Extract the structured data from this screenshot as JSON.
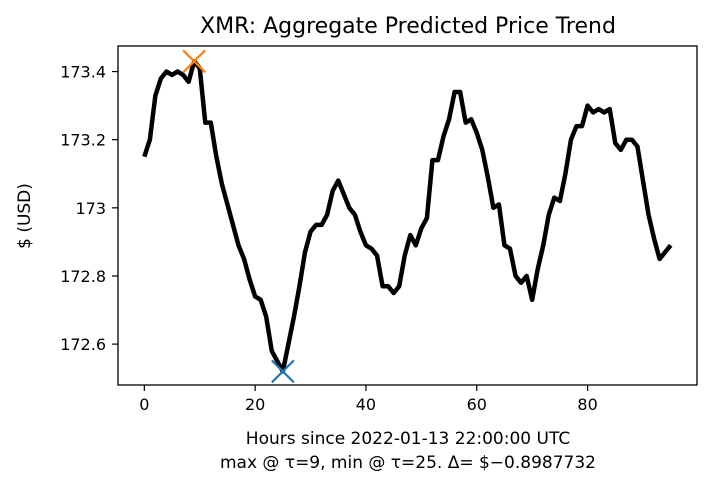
{
  "chart_data": {
    "type": "line",
    "title": "XMR: Aggregate Predicted Price Trend",
    "xlabel": "Hours since 2022-01-13 22:00:00 UTC",
    "xlabel2": "max @ τ=9, min @ τ=25. Δ= $−0.8987732",
    "ylabel": "$ (USD)",
    "xlim": [
      -4.75,
      99.75
    ],
    "ylim": [
      172.48,
      173.475
    ],
    "xticks": [
      0,
      20,
      40,
      60,
      80
    ],
    "xtick_labels": [
      "0",
      "20",
      "40",
      "60",
      "80"
    ],
    "yticks": [
      172.6,
      172.8,
      173.0,
      173.2,
      173.4
    ],
    "ytick_labels": [
      "172.6",
      "172.8",
      "173",
      "173.2",
      "173.4"
    ],
    "grid": false,
    "series": [
      {
        "color": "#000000",
        "x": [
          0,
          1,
          2,
          3,
          4,
          5,
          6,
          7,
          8,
          9,
          10,
          11,
          12,
          13,
          14,
          15,
          16,
          17,
          18,
          19,
          20,
          21,
          22,
          23,
          24,
          25,
          26,
          27,
          28,
          29,
          30,
          31,
          32,
          33,
          34,
          35,
          36,
          37,
          38,
          39,
          40,
          41,
          42,
          43,
          44,
          45,
          46,
          47,
          48,
          49,
          50,
          51,
          52,
          53,
          54,
          55,
          56,
          57,
          58,
          59,
          60,
          61,
          62,
          63,
          64,
          65,
          66,
          67,
          68,
          69,
          70,
          71,
          72,
          73,
          74,
          75,
          76,
          77,
          78,
          79,
          80,
          81,
          82,
          83,
          84,
          85,
          86,
          87,
          88,
          89,
          90,
          91,
          92,
          93,
          94,
          95
        ],
        "y": [
          173.15,
          173.2,
          173.33,
          173.38,
          173.4,
          173.39,
          173.4,
          173.39,
          173.37,
          173.43,
          173.41,
          173.25,
          173.25,
          173.15,
          173.07,
          173.01,
          172.95,
          172.89,
          172.85,
          172.79,
          172.74,
          172.73,
          172.68,
          172.58,
          172.55,
          172.52,
          172.6,
          172.68,
          172.77,
          172.87,
          172.93,
          172.95,
          172.95,
          172.98,
          173.05,
          173.08,
          173.04,
          173.0,
          172.98,
          172.93,
          172.89,
          172.88,
          172.86,
          172.77,
          172.77,
          172.75,
          172.77,
          172.86,
          172.92,
          172.89,
          172.94,
          172.97,
          173.14,
          173.14,
          173.21,
          173.26,
          173.34,
          173.34,
          173.25,
          173.26,
          173.22,
          173.17,
          173.09,
          173.0,
          173.01,
          172.89,
          172.88,
          172.8,
          172.78,
          172.8,
          172.73,
          172.82,
          172.89,
          172.98,
          173.03,
          173.02,
          173.1,
          173.2,
          173.24,
          173.24,
          173.3,
          173.28,
          173.29,
          173.28,
          173.29,
          173.19,
          173.17,
          173.2,
          173.2,
          173.18,
          173.08,
          172.98,
          172.91,
          172.85,
          172.87,
          172.89
        ]
      }
    ],
    "markers": [
      {
        "label": "max",
        "x": 9,
        "y": 173.43,
        "color": "#ff7f0e",
        "symbol": "x"
      },
      {
        "label": "min",
        "x": 25,
        "y": 172.52,
        "color": "#1f77b4",
        "symbol": "x"
      }
    ]
  }
}
